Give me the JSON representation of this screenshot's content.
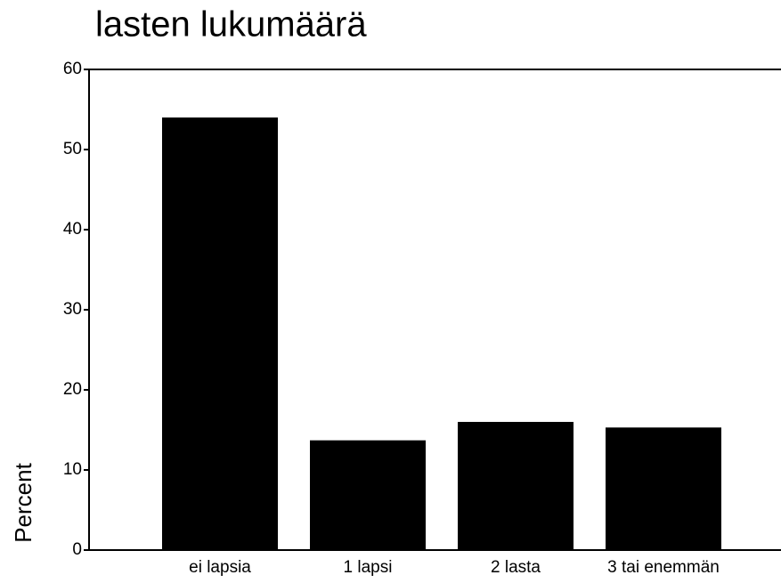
{
  "chart_data": {
    "type": "bar",
    "title": "lasten lukumäärä",
    "y_label": "Percent",
    "categories": [
      "ei lapsia",
      "1 lapsi",
      "2 lasta",
      "3 tai enemmän"
    ],
    "values": [
      54,
      13.7,
      16,
      15.3
    ],
    "color": "#000000",
    "ylim": [
      0,
      60
    ],
    "yticks": [
      0,
      10,
      20,
      30,
      40,
      50,
      60
    ],
    "grid": false
  }
}
